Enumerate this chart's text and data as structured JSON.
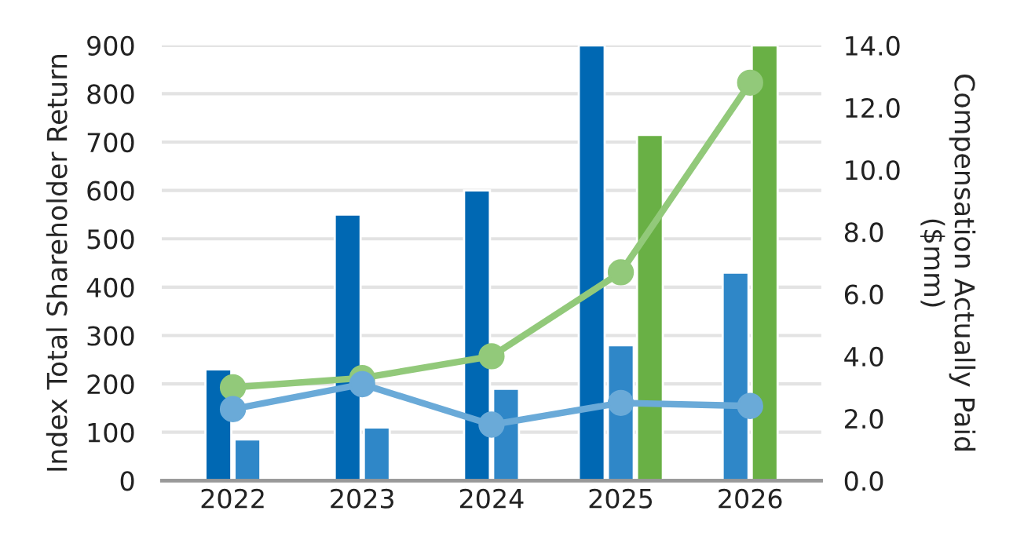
{
  "chart_data": {
    "type": "bar",
    "ylabel": "Index Total Shareholder Return",
    "y2label": "Compensation Actually Paid\n($mm)",
    "categories": [
      "2022",
      "2023",
      "2024",
      "2025",
      "2026"
    ],
    "series": [
      {
        "color": "#0068b3",
        "values": [
          230,
          550,
          600,
          900,
          null
        ]
      },
      {
        "color": "#2f87c8",
        "values": [
          85,
          110,
          190,
          280,
          430
        ]
      },
      {
        "color": "#69b045",
        "values": [
          null,
          null,
          null,
          715,
          900
        ]
      },
      {
        "type": "line",
        "axis": "y2",
        "color": "#92c97a",
        "marker": "circle",
        "values": [
          3.0,
          3.3,
          4.0,
          6.7,
          12.8
        ]
      },
      {
        "type": "line",
        "axis": "y2",
        "color": "#6aaad8",
        "marker": "circle",
        "values": [
          2.3,
          3.1,
          1.8,
          2.5,
          2.4
        ]
      }
    ],
    "ylim": [
      0,
      900
    ],
    "yticks": [
      0,
      100,
      200,
      300,
      400,
      500,
      600,
      700,
      800,
      900
    ],
    "y2lim": [
      0,
      14
    ],
    "y2ticks": [
      {
        "value": 0,
        "label": "0.0"
      },
      {
        "value": 2,
        "label": "2.0"
      },
      {
        "value": 4,
        "label": "4.0"
      },
      {
        "value": 6,
        "label": "6.0"
      },
      {
        "value": 8,
        "label": "8.0"
      },
      {
        "value": 10,
        "label": "10.0"
      },
      {
        "value": 12,
        "label": "12.0"
      },
      {
        "value": 14,
        "label": "14.0"
      }
    ],
    "grid": "y",
    "legend": false
  }
}
